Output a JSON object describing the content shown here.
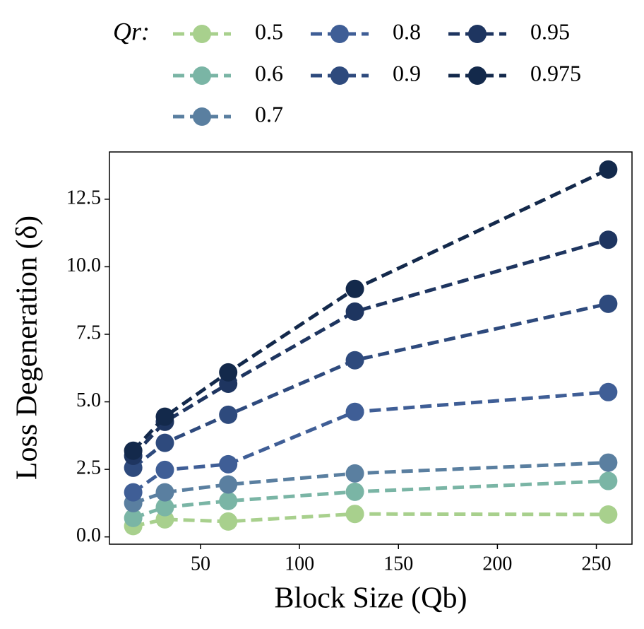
{
  "chart_data": {
    "type": "line",
    "x_label": "Block Size (Qb)",
    "y_label": "Loss Degeneration (δ)",
    "legend_title": "Qr:",
    "legend_loc": "top",
    "x": [
      16,
      32,
      64,
      128,
      256
    ],
    "series": [
      {
        "name": "0.5",
        "color": "#a8d08d",
        "values": [
          0.4,
          0.65,
          0.57,
          0.85,
          0.83
        ]
      },
      {
        "name": "0.6",
        "color": "#7ab5a5",
        "values": [
          0.7,
          1.1,
          1.33,
          1.67,
          2.07
        ]
      },
      {
        "name": "0.7",
        "color": "#5a7fa0",
        "values": [
          1.25,
          1.65,
          1.94,
          2.35,
          2.75
        ]
      },
      {
        "name": "0.8",
        "color": "#3f5e96",
        "values": [
          1.65,
          2.48,
          2.69,
          4.63,
          5.36
        ]
      },
      {
        "name": "0.9",
        "color": "#2e4a7d",
        "values": [
          2.56,
          3.48,
          4.52,
          6.54,
          8.63
        ]
      },
      {
        "name": "0.95",
        "color": "#1e3560",
        "values": [
          3.0,
          4.26,
          5.67,
          8.34,
          11.0
        ]
      },
      {
        "name": "0.975",
        "color": "#13294b",
        "values": [
          3.19,
          4.45,
          6.09,
          9.18,
          13.6
        ]
      }
    ],
    "xlim": [
      4,
      268
    ],
    "xticks": [
      50,
      100,
      150,
      200,
      250
    ],
    "ylim": [
      -0.27,
      14.25
    ],
    "yticks": [
      {
        "value": 0,
        "label": "0.0"
      },
      2.5,
      {
        "value": 5,
        "label": "5.0"
      },
      7.5,
      {
        "value": 10,
        "label": "10.0"
      },
      12.5
    ],
    "grid": false
  }
}
